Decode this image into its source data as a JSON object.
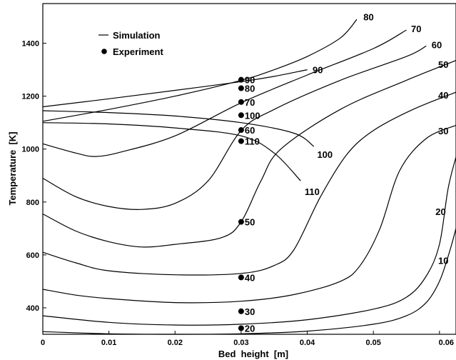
{
  "chart_data": {
    "type": "line",
    "xlabel": "Bed  height  [m]",
    "ylabel": "Temperature  [K]",
    "xlim": [
      0,
      0.0625
    ],
    "ylim": [
      300,
      1550
    ],
    "x_ticks": [
      "0",
      "0.01",
      "0.02",
      "0.03",
      "0.04",
      "0.05",
      "0.06"
    ],
    "x_tick_values": [
      0,
      0.01,
      0.02,
      0.03,
      0.04,
      0.05,
      0.06
    ],
    "y_ticks": [
      "400",
      "600",
      "800",
      "1000",
      "1200",
      "1400"
    ],
    "y_tick_values": [
      400,
      600,
      800,
      1000,
      1200,
      1400
    ],
    "grid": false,
    "legend_position": "top-left",
    "legend": [
      {
        "label": "Simulation",
        "marker": "line"
      },
      {
        "label": "Experiment",
        "marker": "dot"
      }
    ],
    "series": [
      {
        "name": "110",
        "points": [
          [
            0,
            1100
          ],
          [
            0.01,
            1095
          ],
          [
            0.02,
            1080
          ],
          [
            0.03,
            1050
          ],
          [
            0.035,
            985
          ],
          [
            0.039,
            880
          ]
        ]
      },
      {
        "name": "100",
        "points": [
          [
            0,
            1145
          ],
          [
            0.01,
            1138
          ],
          [
            0.02,
            1125
          ],
          [
            0.03,
            1100
          ],
          [
            0.038,
            1060
          ],
          [
            0.041,
            1010
          ]
        ]
      },
      {
        "name": "90",
        "points": [
          [
            0,
            1160
          ],
          [
            0.01,
            1190
          ],
          [
            0.02,
            1222
          ],
          [
            0.03,
            1255
          ],
          [
            0.035,
            1275
          ],
          [
            0.04,
            1300
          ]
        ]
      },
      {
        "name": "80",
        "points": [
          [
            0,
            1105
          ],
          [
            0.01,
            1150
          ],
          [
            0.02,
            1200
          ],
          [
            0.03,
            1260
          ],
          [
            0.035,
            1300
          ],
          [
            0.04,
            1350
          ],
          [
            0.045,
            1420
          ],
          [
            0.0475,
            1490
          ]
        ]
      },
      {
        "name": "70",
        "points": [
          [
            0,
            1020
          ],
          [
            0.005,
            985
          ],
          [
            0.008,
            972
          ],
          [
            0.012,
            990
          ],
          [
            0.02,
            1050
          ],
          [
            0.03,
            1175
          ],
          [
            0.04,
            1280
          ],
          [
            0.05,
            1380
          ],
          [
            0.055,
            1450
          ]
        ]
      },
      {
        "name": "60",
        "points": [
          [
            0,
            890
          ],
          [
            0.005,
            820
          ],
          [
            0.01,
            783
          ],
          [
            0.015,
            772
          ],
          [
            0.02,
            795
          ],
          [
            0.025,
            880
          ],
          [
            0.03,
            1070
          ],
          [
            0.035,
            1150
          ],
          [
            0.045,
            1260
          ],
          [
            0.055,
            1350
          ],
          [
            0.058,
            1390
          ]
        ]
      },
      {
        "name": "50",
        "points": [
          [
            0,
            755
          ],
          [
            0.005,
            690
          ],
          [
            0.01,
            650
          ],
          [
            0.015,
            630
          ],
          [
            0.02,
            640
          ],
          [
            0.027,
            665
          ],
          [
            0.03,
            725
          ],
          [
            0.033,
            880
          ],
          [
            0.036,
            1000
          ],
          [
            0.045,
            1150
          ],
          [
            0.055,
            1260
          ],
          [
            0.0625,
            1335
          ]
        ]
      },
      {
        "name": "40",
        "points": [
          [
            0,
            610
          ],
          [
            0.005,
            570
          ],
          [
            0.01,
            540
          ],
          [
            0.02,
            525
          ],
          [
            0.03,
            530
          ],
          [
            0.035,
            560
          ],
          [
            0.038,
            620
          ],
          [
            0.042,
            820
          ],
          [
            0.046,
            980
          ],
          [
            0.05,
            1070
          ],
          [
            0.056,
            1150
          ],
          [
            0.0625,
            1215
          ]
        ]
      },
      {
        "name": "30",
        "points": [
          [
            0,
            470
          ],
          [
            0.005,
            448
          ],
          [
            0.01,
            435
          ],
          [
            0.02,
            420
          ],
          [
            0.03,
            425
          ],
          [
            0.038,
            450
          ],
          [
            0.045,
            500
          ],
          [
            0.048,
            560
          ],
          [
            0.051,
            700
          ],
          [
            0.054,
            920
          ],
          [
            0.058,
            1040
          ],
          [
            0.0625,
            1090
          ]
        ]
      },
      {
        "name": "20",
        "points": [
          [
            0,
            370
          ],
          [
            0.01,
            345
          ],
          [
            0.02,
            335
          ],
          [
            0.03,
            338
          ],
          [
            0.04,
            355
          ],
          [
            0.05,
            395
          ],
          [
            0.055,
            440
          ],
          [
            0.058,
            520
          ],
          [
            0.06,
            640
          ],
          [
            0.0613,
            850
          ],
          [
            0.0625,
            970
          ]
        ]
      },
      {
        "name": "10",
        "points": [
          [
            0,
            310
          ],
          [
            0.01,
            302
          ],
          [
            0.02,
            300
          ],
          [
            0.03,
            302
          ],
          [
            0.04,
            312
          ],
          [
            0.05,
            338
          ],
          [
            0.055,
            370
          ],
          [
            0.058,
            420
          ],
          [
            0.06,
            500
          ],
          [
            0.0615,
            610
          ],
          [
            0.0625,
            700
          ]
        ]
      }
    ],
    "curve_labels": [
      {
        "text": "110",
        "x": 0.0396,
        "y": 840
      },
      {
        "text": "100",
        "x": 0.0415,
        "y": 980
      },
      {
        "text": "90",
        "x": 0.0408,
        "y": 1300
      },
      {
        "text": "80",
        "x": 0.0485,
        "y": 1500
      },
      {
        "text": "70",
        "x": 0.0557,
        "y": 1455
      },
      {
        "text": "60",
        "x": 0.0588,
        "y": 1395
      },
      {
        "text": "50",
        "x": 0.0598,
        "y": 1320
      },
      {
        "text": "40",
        "x": 0.0598,
        "y": 1205
      },
      {
        "text": "30",
        "x": 0.0598,
        "y": 1070
      },
      {
        "text": "20",
        "x": 0.0594,
        "y": 765
      },
      {
        "text": "10",
        "x": 0.0598,
        "y": 580
      }
    ],
    "experiment": [
      {
        "label": "90",
        "x": 0.03,
        "y": 1262
      },
      {
        "label": "80",
        "x": 0.03,
        "y": 1230
      },
      {
        "label": "70",
        "x": 0.03,
        "y": 1178
      },
      {
        "label": "100",
        "x": 0.03,
        "y": 1128
      },
      {
        "label": "60",
        "x": 0.03,
        "y": 1072
      },
      {
        "label": "110",
        "x": 0.03,
        "y": 1030
      },
      {
        "label": "50",
        "x": 0.03,
        "y": 725
      },
      {
        "label": "40",
        "x": 0.03,
        "y": 515
      },
      {
        "label": "30",
        "x": 0.03,
        "y": 387
      },
      {
        "label": "20",
        "x": 0.03,
        "y": 323
      }
    ]
  }
}
